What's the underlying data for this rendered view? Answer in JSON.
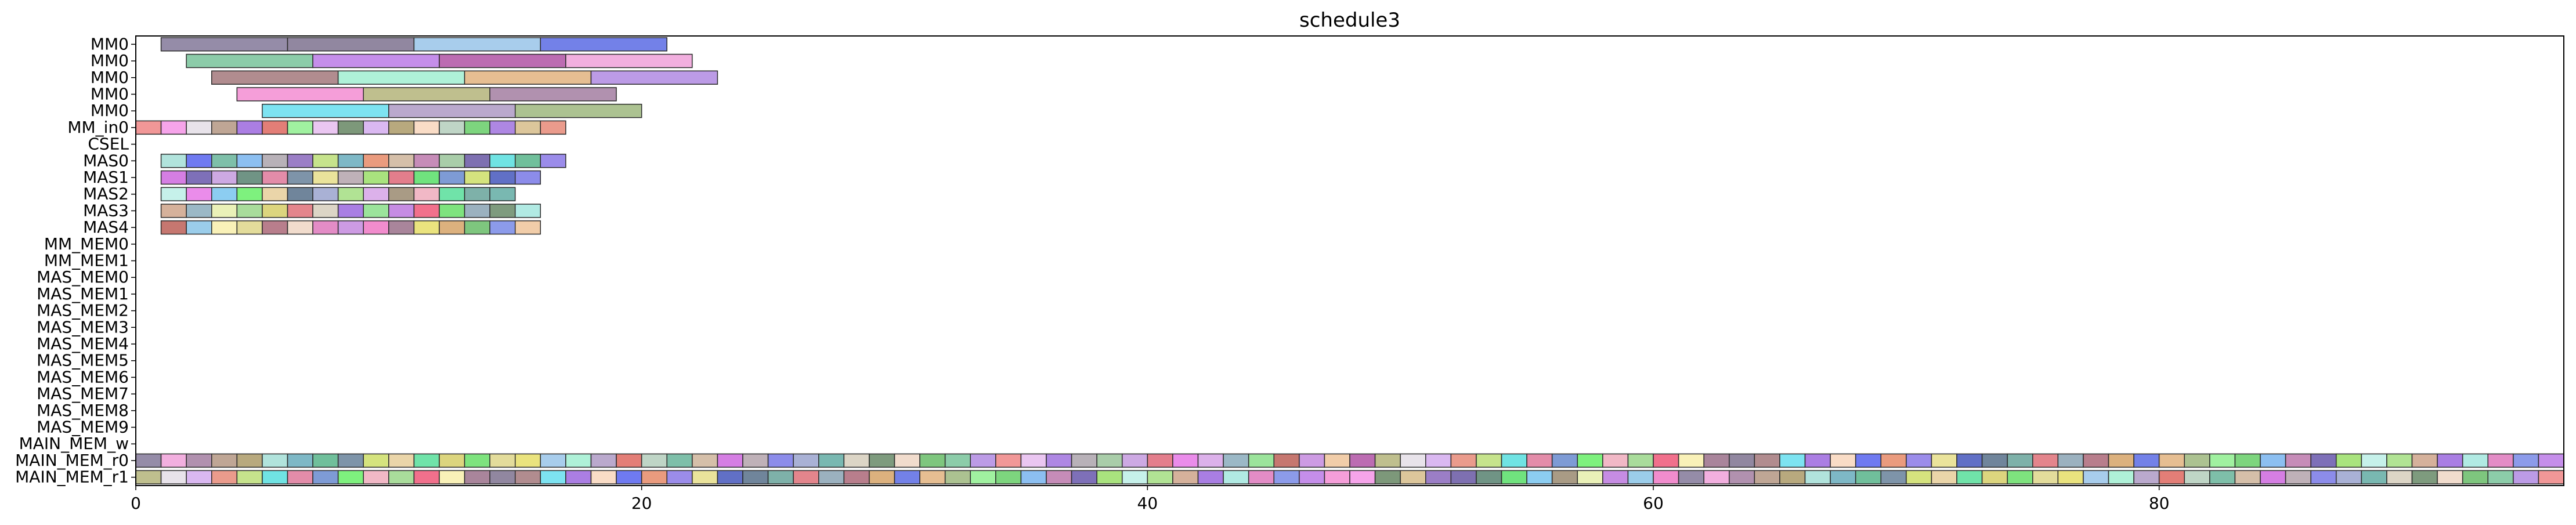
{
  "chart_data": {
    "type": "gantt",
    "title": "schedule3",
    "xlabel": "",
    "ylabel": "",
    "xlim": [
      0,
      96
    ],
    "x_ticks": [
      0,
      20,
      40,
      60,
      80
    ],
    "x_tick_labels": [
      "0",
      "20",
      "40",
      "60",
      "80"
    ],
    "rows": [
      "MM0",
      "MM0",
      "MM0",
      "MM0",
      "MM0",
      "MM_in0",
      "CSEL",
      "MAS0",
      "MAS1",
      "MAS2",
      "MAS3",
      "MAS4",
      "MM_MEM0",
      "MM_MEM1",
      "MAS_MEM0",
      "MAS_MEM1",
      "MAS_MEM2",
      "MAS_MEM3",
      "MAS_MEM4",
      "MAS_MEM5",
      "MAS_MEM6",
      "MAS_MEM7",
      "MAS_MEM8",
      "MAS_MEM9",
      "MAIN_MEM_w",
      "MAIN_MEM_r0",
      "MAIN_MEM_r1"
    ],
    "tasks": [
      {
        "row": 0,
        "start": 1,
        "end": 6,
        "color": "#8a7f9e"
      },
      {
        "row": 0,
        "start": 6,
        "end": 11,
        "color": "#857a96"
      },
      {
        "row": 0,
        "start": 11,
        "end": 16,
        "color": "#9ec8ea"
      },
      {
        "row": 0,
        "start": 16,
        "end": 21,
        "color": "#6473e6"
      },
      {
        "row": 1,
        "start": 2,
        "end": 7,
        "color": "#7fc7a0"
      },
      {
        "row": 1,
        "start": 7,
        "end": 12,
        "color": "#bf82e8"
      },
      {
        "row": 1,
        "start": 12,
        "end": 17,
        "color": "#b55caa"
      },
      {
        "row": 1,
        "start": 17,
        "end": 22,
        "color": "#f1a6dc"
      },
      {
        "row": 2,
        "start": 3,
        "end": 8,
        "color": "#a97f83"
      },
      {
        "row": 2,
        "start": 8,
        "end": 13,
        "color": "#a6f0d4"
      },
      {
        "row": 2,
        "start": 13,
        "end": 18,
        "color": "#e3b786"
      },
      {
        "row": 2,
        "start": 18,
        "end": 23,
        "color": "#b590e3"
      },
      {
        "row": 3,
        "start": 4,
        "end": 9,
        "color": "#f494d5"
      },
      {
        "row": 3,
        "start": 9,
        "end": 14,
        "color": "#b8b882"
      },
      {
        "row": 3,
        "start": 14,
        "end": 19,
        "color": "#a885a6"
      },
      {
        "row": 4,
        "start": 5,
        "end": 10,
        "color": "#6fe0f0"
      },
      {
        "row": 4,
        "start": 10,
        "end": 15,
        "color": "#b3a0c8"
      },
      {
        "row": 4,
        "start": 15,
        "end": 20,
        "color": "#a3bb85"
      },
      {
        "row": 5,
        "start": 0,
        "end": 1,
        "color": "#f08c8c"
      },
      {
        "row": 5,
        "start": 1,
        "end": 2,
        "color": "#f59ae8"
      },
      {
        "row": 5,
        "start": 2,
        "end": 3,
        "color": "#e5e0e8"
      },
      {
        "row": 5,
        "start": 3,
        "end": 4,
        "color": "#b89c8a"
      },
      {
        "row": 5,
        "start": 4,
        "end": 5,
        "color": "#a270e0"
      },
      {
        "row": 5,
        "start": 5,
        "end": 6,
        "color": "#e07068"
      },
      {
        "row": 5,
        "start": 6,
        "end": 7,
        "color": "#96ef96"
      },
      {
        "row": 5,
        "start": 7,
        "end": 8,
        "color": "#e8c0f0"
      },
      {
        "row": 5,
        "start": 8,
        "end": 9,
        "color": "#6f8d6c"
      },
      {
        "row": 5,
        "start": 9,
        "end": 10,
        "color": "#d6b0f0"
      },
      {
        "row": 5,
        "start": 10,
        "end": 11,
        "color": "#b0a070"
      },
      {
        "row": 5,
        "start": 11,
        "end": 12,
        "color": "#f8d8c0"
      },
      {
        "row": 5,
        "start": 12,
        "end": 13,
        "color": "#b8d0c0"
      },
      {
        "row": 5,
        "start": 13,
        "end": 14,
        "color": "#6fd070"
      },
      {
        "row": 5,
        "start": 14,
        "end": 15,
        "color": "#a57ae0"
      },
      {
        "row": 5,
        "start": 15,
        "end": 16,
        "color": "#d8c090"
      },
      {
        "row": 5,
        "start": 16,
        "end": 17,
        "color": "#e89080"
      },
      {
        "row": 7,
        "start": 1,
        "end": 2,
        "color": "#a8e0d8"
      },
      {
        "row": 7,
        "start": 2,
        "end": 3,
        "color": "#5f6cf0"
      },
      {
        "row": 7,
        "start": 3,
        "end": 4,
        "color": "#70b8a0"
      },
      {
        "row": 7,
        "start": 4,
        "end": 5,
        "color": "#80b8f0"
      },
      {
        "row": 7,
        "start": 5,
        "end": 6,
        "color": "#b0a8b0"
      },
      {
        "row": 7,
        "start": 6,
        "end": 7,
        "color": "#9070c0"
      },
      {
        "row": 7,
        "start": 7,
        "end": 8,
        "color": "#c0e080"
      },
      {
        "row": 7,
        "start": 8,
        "end": 9,
        "color": "#70b0c0"
      },
      {
        "row": 7,
        "start": 9,
        "end": 10,
        "color": "#e89070"
      },
      {
        "row": 7,
        "start": 10,
        "end": 11,
        "color": "#d0b8a0"
      },
      {
        "row": 7,
        "start": 11,
        "end": 12,
        "color": "#c080b0"
      },
      {
        "row": 7,
        "start": 12,
        "end": 13,
        "color": "#a0c8a0"
      },
      {
        "row": 7,
        "start": 13,
        "end": 14,
        "color": "#7060a8"
      },
      {
        "row": 7,
        "start": 14,
        "end": 15,
        "color": "#60e0e0"
      },
      {
        "row": 7,
        "start": 15,
        "end": 16,
        "color": "#60b890"
      },
      {
        "row": 7,
        "start": 16,
        "end": 17,
        "color": "#9080e8"
      },
      {
        "row": 8,
        "start": 1,
        "end": 2,
        "color": "#d070e0"
      },
      {
        "row": 8,
        "start": 2,
        "end": 3,
        "color": "#7060b0"
      },
      {
        "row": 8,
        "start": 3,
        "end": 4,
        "color": "#c8a0e0"
      },
      {
        "row": 8,
        "start": 4,
        "end": 5,
        "color": "#608878"
      },
      {
        "row": 8,
        "start": 5,
        "end": 6,
        "color": "#e080a0"
      },
      {
        "row": 8,
        "start": 6,
        "end": 7,
        "color": "#7088a0"
      },
      {
        "row": 8,
        "start": 7,
        "end": 8,
        "color": "#e8e090"
      },
      {
        "row": 8,
        "start": 8,
        "end": 9,
        "color": "#b8a8b0"
      },
      {
        "row": 8,
        "start": 9,
        "end": 10,
        "color": "#a0e070"
      },
      {
        "row": 8,
        "start": 10,
        "end": 11,
        "color": "#e07080"
      },
      {
        "row": 8,
        "start": 11,
        "end": 12,
        "color": "#60e070"
      },
      {
        "row": 8,
        "start": 12,
        "end": 13,
        "color": "#7090d0"
      },
      {
        "row": 8,
        "start": 13,
        "end": 14,
        "color": "#d0e070"
      },
      {
        "row": 8,
        "start": 14,
        "end": 15,
        "color": "#5060c0"
      },
      {
        "row": 8,
        "start": 15,
        "end": 16,
        "color": "#8080e8"
      },
      {
        "row": 9,
        "start": 1,
        "end": 2,
        "color": "#c0f0e8"
      },
      {
        "row": 9,
        "start": 2,
        "end": 3,
        "color": "#e880e8"
      },
      {
        "row": 9,
        "start": 3,
        "end": 4,
        "color": "#80c8f0"
      },
      {
        "row": 9,
        "start": 4,
        "end": 5,
        "color": "#70f070"
      },
      {
        "row": 9,
        "start": 5,
        "end": 6,
        "color": "#e8d0a0"
      },
      {
        "row": 9,
        "start": 6,
        "end": 7,
        "color": "#607890"
      },
      {
        "row": 9,
        "start": 7,
        "end": 8,
        "color": "#a0a8d0"
      },
      {
        "row": 9,
        "start": 8,
        "end": 9,
        "color": "#a8e088"
      },
      {
        "row": 9,
        "start": 9,
        "end": 10,
        "color": "#d8a8e8"
      },
      {
        "row": 9,
        "start": 10,
        "end": 11,
        "color": "#a09078"
      },
      {
        "row": 9,
        "start": 11,
        "end": 12,
        "color": "#f0b0c0"
      },
      {
        "row": 9,
        "start": 12,
        "end": 13,
        "color": "#60e0a0"
      },
      {
        "row": 9,
        "start": 13,
        "end": 14,
        "color": "#70a8a0"
      },
      {
        "row": 9,
        "start": 14,
        "end": 15,
        "color": "#6ab0a8"
      },
      {
        "row": 10,
        "start": 1,
        "end": 2,
        "color": "#d0a890"
      },
      {
        "row": 10,
        "start": 2,
        "end": 3,
        "color": "#90b0c0"
      },
      {
        "row": 10,
        "start": 3,
        "end": 4,
        "color": "#e8f0b0"
      },
      {
        "row": 10,
        "start": 4,
        "end": 5,
        "color": "#a0d890"
      },
      {
        "row": 10,
        "start": 5,
        "end": 6,
        "color": "#d8d070"
      },
      {
        "row": 10,
        "start": 6,
        "end": 7,
        "color": "#e07880"
      },
      {
        "row": 10,
        "start": 7,
        "end": 8,
        "color": "#d8d0c0"
      },
      {
        "row": 10,
        "start": 8,
        "end": 9,
        "color": "#a070e0"
      },
      {
        "row": 10,
        "start": 9,
        "end": 10,
        "color": "#90e090"
      },
      {
        "row": 10,
        "start": 10,
        "end": 11,
        "color": "#c080e0"
      },
      {
        "row": 10,
        "start": 11,
        "end": 12,
        "color": "#f06080"
      },
      {
        "row": 10,
        "start": 12,
        "end": 13,
        "color": "#70e070"
      },
      {
        "row": 10,
        "start": 13,
        "end": 14,
        "color": "#90a8b8"
      },
      {
        "row": 10,
        "start": 14,
        "end": 15,
        "color": "#709070"
      },
      {
        "row": 10,
        "start": 15,
        "end": 16,
        "color": "#a8e8e0"
      },
      {
        "row": 11,
        "start": 1,
        "end": 2,
        "color": "#c06860"
      },
      {
        "row": 11,
        "start": 2,
        "end": 3,
        "color": "#90c8e8"
      },
      {
        "row": 11,
        "start": 3,
        "end": 4,
        "color": "#f8f0b0"
      },
      {
        "row": 11,
        "start": 4,
        "end": 5,
        "color": "#e0d890"
      },
      {
        "row": 11,
        "start": 5,
        "end": 6,
        "color": "#b07080"
      },
      {
        "row": 11,
        "start": 6,
        "end": 7,
        "color": "#f0d8c8"
      },
      {
        "row": 11,
        "start": 7,
        "end": 8,
        "color": "#e080c0"
      },
      {
        "row": 11,
        "start": 8,
        "end": 9,
        "color": "#c890e0"
      },
      {
        "row": 11,
        "start": 9,
        "end": 10,
        "color": "#f080c8"
      },
      {
        "row": 11,
        "start": 10,
        "end": 11,
        "color": "#a07890"
      },
      {
        "row": 11,
        "start": 11,
        "end": 12,
        "color": "#e8e070"
      },
      {
        "row": 11,
        "start": 12,
        "end": 13,
        "color": "#d8a870"
      },
      {
        "row": 11,
        "start": 13,
        "end": 14,
        "color": "#70c070"
      },
      {
        "row": 11,
        "start": 14,
        "end": 15,
        "color": "#8090e8"
      },
      {
        "row": 11,
        "start": 15,
        "end": 16,
        "color": "#f0c8a0"
      }
    ],
    "grid": false,
    "legend": "none"
  }
}
